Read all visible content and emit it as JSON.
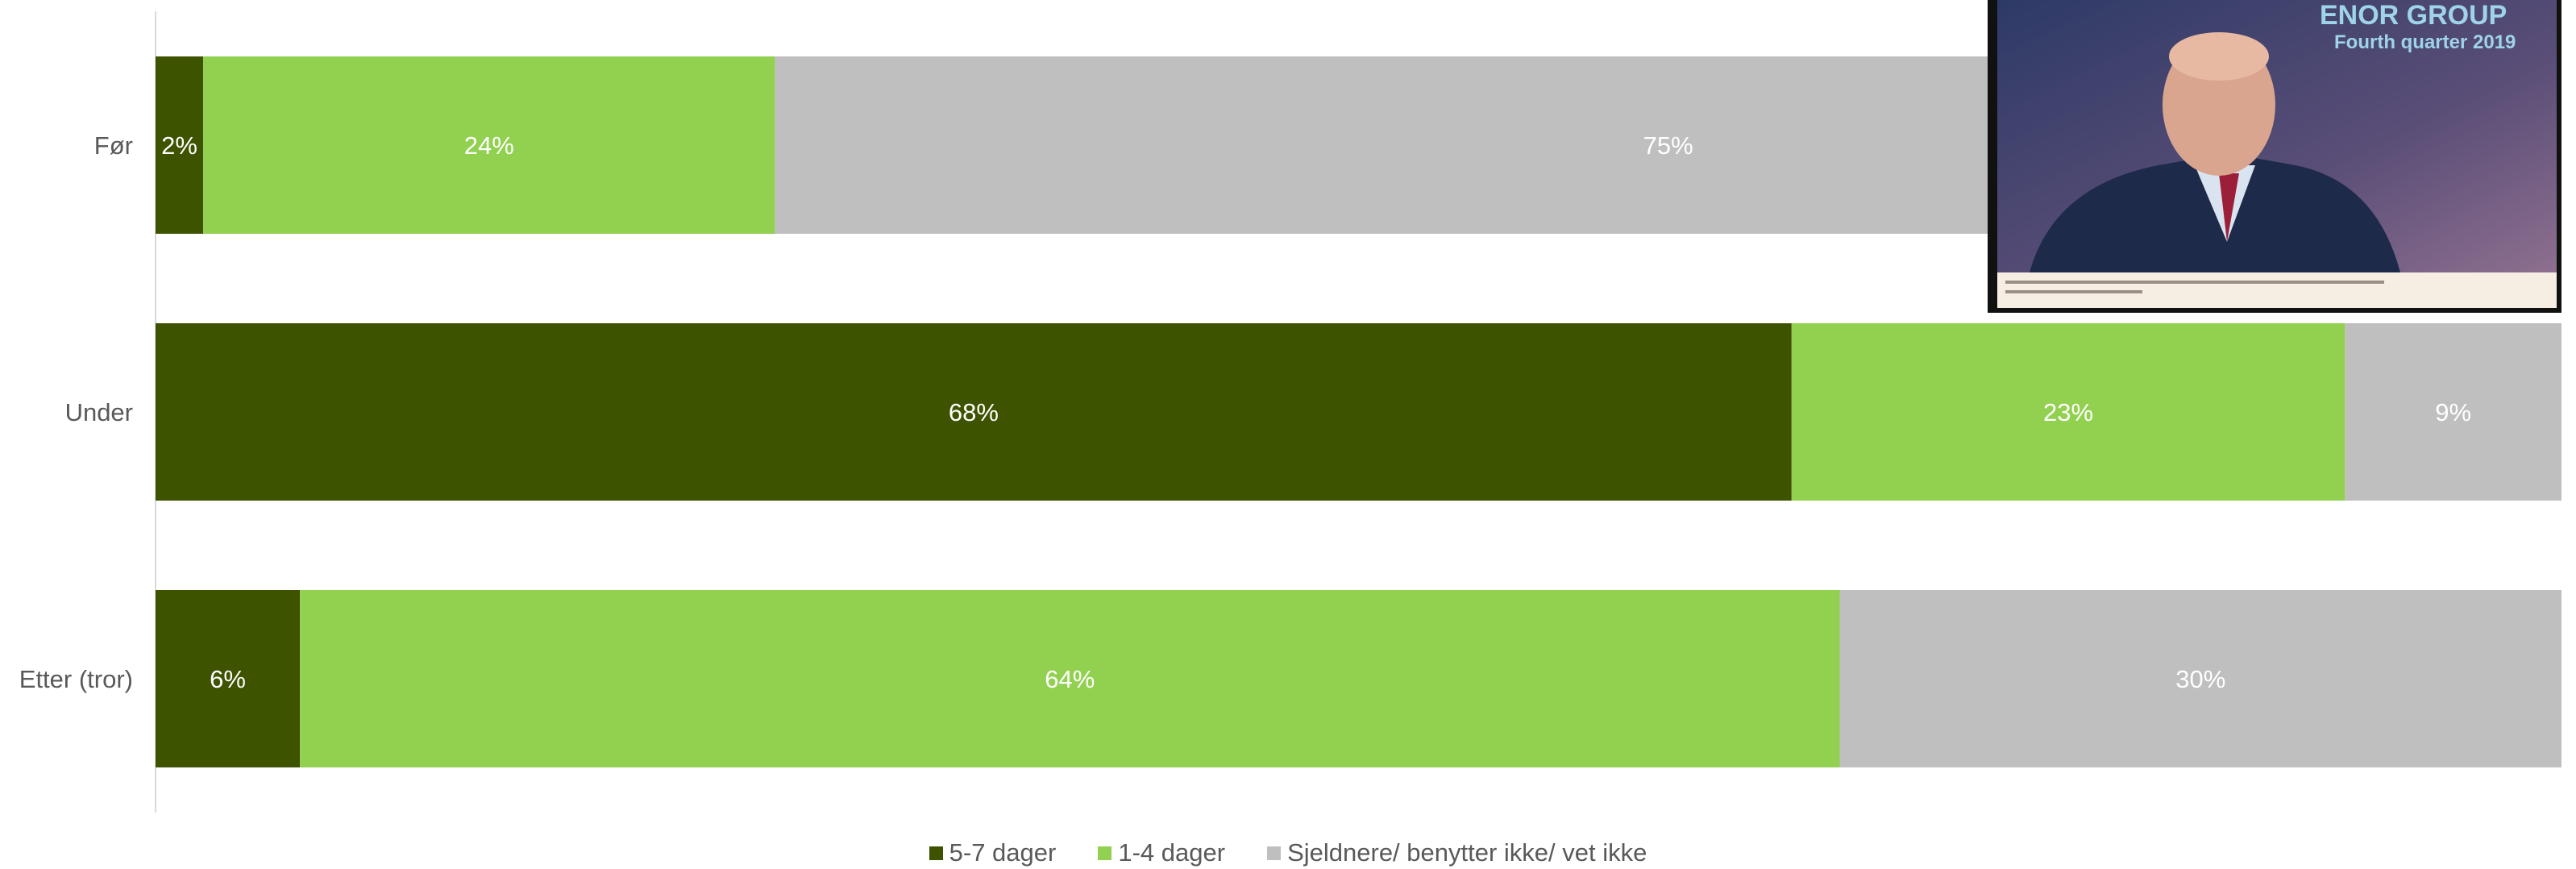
{
  "chart_data": {
    "type": "bar",
    "orientation": "horizontal",
    "stacked": true,
    "percent_stacked": true,
    "categories": [
      "Før",
      "Under",
      "Etter (tror)"
    ],
    "series": [
      {
        "name": "5-7 dager",
        "color": "#3d5300",
        "values": [
          2,
          68,
          6
        ]
      },
      {
        "name": "1-4 dager",
        "color": "#92d050",
        "values": [
          24,
          23,
          64
        ]
      },
      {
        "name": "Sjeldnere/ benytter ikke/ vet ikke",
        "color": "#bfbfbf",
        "values": [
          75,
          9,
          30
        ]
      }
    ],
    "value_labels": [
      [
        "2%",
        "24%",
        "75%"
      ],
      [
        "68%",
        "23%",
        "9%"
      ],
      [
        "6%",
        "64%",
        "30%"
      ]
    ],
    "legend_position": "bottom-center",
    "grid": false
  },
  "inset_image": {
    "description_icon": "photo-icon",
    "visible_text": [
      "Fourth quarter 2019"
    ]
  }
}
